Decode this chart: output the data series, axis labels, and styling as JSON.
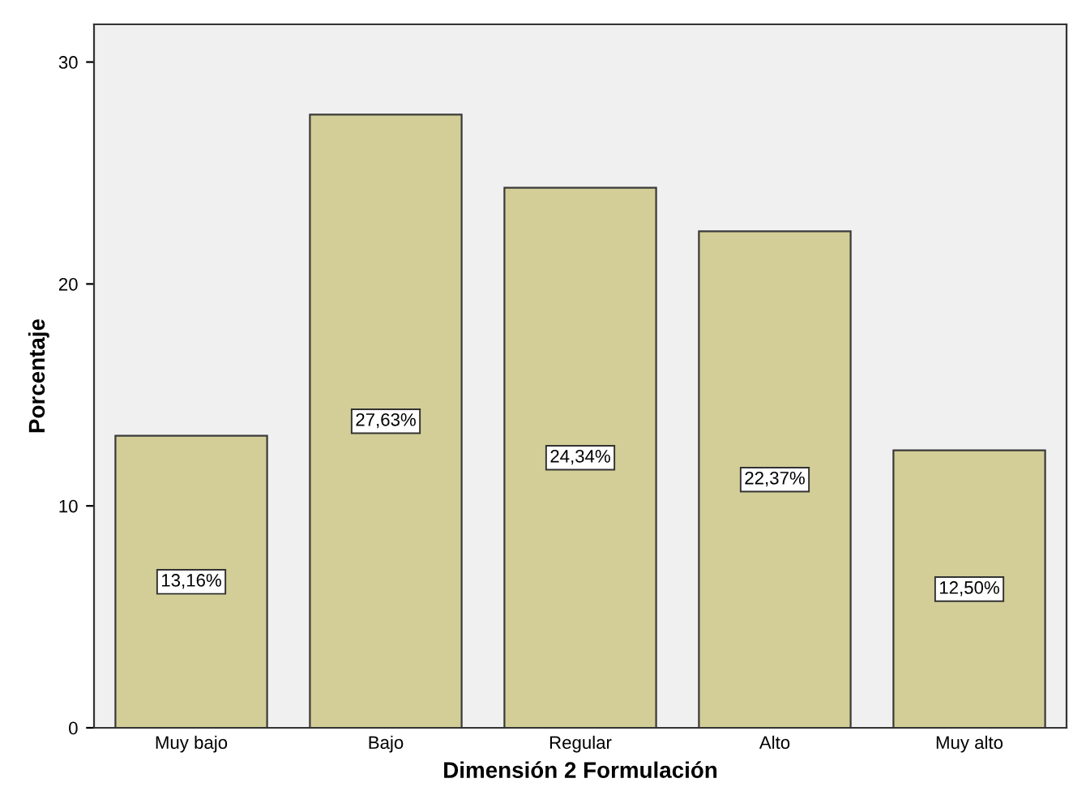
{
  "chart_data": {
    "type": "bar",
    "xlabel": "Dimensión 2 Formulación",
    "ylabel": "Porcentaje",
    "categories": [
      "Muy bajo",
      "Bajo",
      "Regular",
      "Alto",
      "Muy alto"
    ],
    "values": [
      13.16,
      27.63,
      24.34,
      22.37,
      12.5
    ],
    "value_labels": [
      "13,16%",
      "27,63%",
      "24,34%",
      "22,37%",
      "12,50%"
    ],
    "color": "#d3ce97",
    "ylim": [
      0,
      31.7
    ],
    "yticks": [
      0,
      10,
      20,
      30
    ],
    "grid": false,
    "legend": false
  }
}
